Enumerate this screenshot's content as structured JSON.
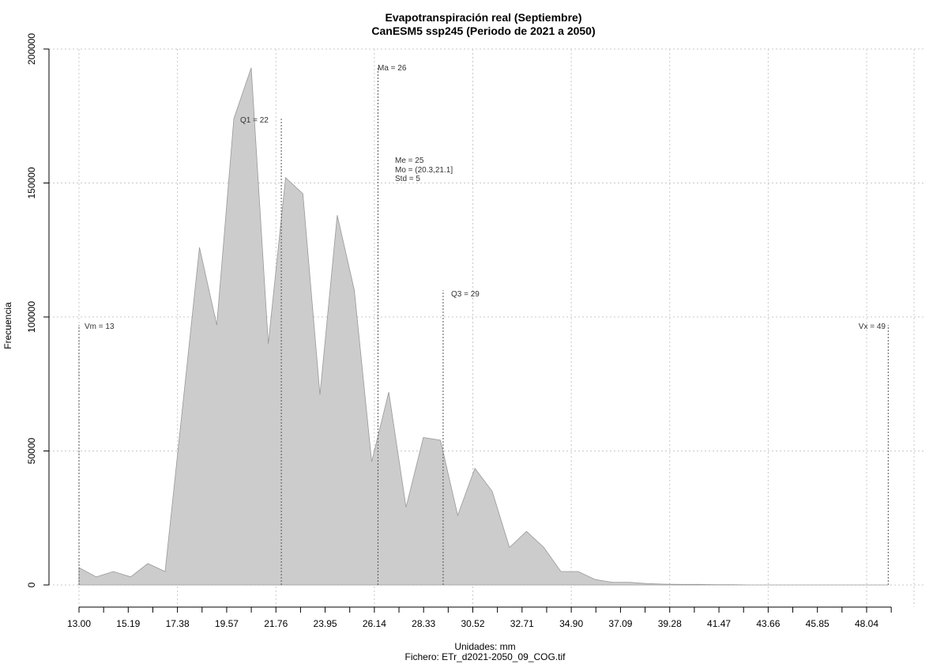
{
  "chart_data": {
    "type": "area",
    "title": "Evapotranspiración real (Septiembre)",
    "subtitle": "CanESM5 ssp245 (Periodo de 2021 a 2050)",
    "xlabel": "Unidades: mm",
    "ylabel": "Frecuencia",
    "caption": "Fichero: ETr_d2021-2050_09_COG.tif",
    "xlim": [
      13.0,
      49.2
    ],
    "ylim": [
      0,
      200000
    ],
    "x_ticks": [
      "13.00",
      "15.19",
      "17.38",
      "19.57",
      "21.76",
      "23.95",
      "26.14",
      "28.33",
      "30.52",
      "32.71",
      "34.90",
      "37.09",
      "39.28",
      "41.47",
      "43.66",
      "45.85",
      "48.04"
    ],
    "y_ticks": [
      0,
      50000,
      100000,
      150000,
      200000
    ],
    "grid": true,
    "fill_color": "#cccccc",
    "line_color": "#999999",
    "x": [
      13.0,
      13.77,
      14.53,
      15.3,
      16.06,
      16.83,
      17.59,
      18.36,
      19.13,
      19.89,
      20.66,
      21.42,
      22.19,
      22.96,
      23.72,
      24.49,
      25.25,
      26.02,
      26.78,
      27.55,
      28.32,
      29.08,
      29.85,
      30.61,
      31.38,
      32.15,
      32.91,
      33.68,
      34.44,
      35.21,
      35.97,
      36.74,
      37.51,
      38.27,
      39.04,
      39.8,
      40.57,
      41.34,
      42.1,
      42.87,
      43.63,
      44.4,
      45.17,
      45.93,
      46.7,
      47.46,
      48.23,
      48.99
    ],
    "values": [
      6500,
      3000,
      5000,
      3000,
      8000,
      5000,
      65000,
      126000,
      97000,
      174000,
      193000,
      90000,
      152000,
      146000,
      71000,
      138000,
      110000,
      46000,
      72000,
      29000,
      55000,
      54000,
      26000,
      43500,
      35000,
      14000,
      20000,
      14000,
      5000,
      5000,
      2000,
      1000,
      1000,
      500,
      300,
      200,
      200,
      100,
      100,
      0,
      0,
      0,
      0,
      0,
      0,
      0,
      0,
      0
    ],
    "annotations": {
      "vm": {
        "label": "Vm = 13",
        "x": 13.0,
        "y": 97000
      },
      "q1": {
        "label": "Q1 = 22",
        "x": 22.0,
        "y": 174000
      },
      "ma": {
        "label": "Ma = 26",
        "x": 26.3,
        "y": 193000
      },
      "q3": {
        "label": "Q3 = 29",
        "x": 29.2,
        "y": 110000
      },
      "vx": {
        "label": "Vx = 49",
        "x": 49.0,
        "y": 97000
      },
      "stats": [
        "Me = 25",
        "Mo = (20.3,21.1]",
        "Std = 5"
      ]
    }
  }
}
